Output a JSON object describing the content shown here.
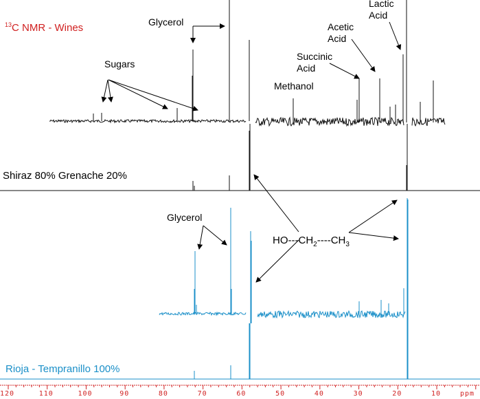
{
  "chart_data": {
    "type": "line",
    "title": "13C NMR - Wines",
    "xlabel": "ppm",
    "xlim": [
      120,
      0
    ],
    "x_reversed": true,
    "x_ticks": [
      120,
      110,
      100,
      90,
      80,
      70,
      60,
      50,
      40,
      30,
      20,
      10
    ],
    "grid": false,
    "series": [
      {
        "name": "Shiraz 80% Grenache 20%",
        "color": "#000000",
        "peaks": [
          {
            "ppm": 72.5,
            "label": "Glycerol",
            "rel_height": 0.72
          },
          {
            "ppm": 63.5,
            "label": "Glycerol",
            "rel_height": 1.0
          },
          {
            "ppm": 58.0,
            "label": "Ethanol CH2",
            "rel_height": 1.0
          },
          {
            "ppm": 47.0,
            "label": "Methanol",
            "rel_height": 0.3
          },
          {
            "ppm": 29.5,
            "label": "Succinic Acid",
            "rel_height": 0.55
          },
          {
            "ppm": 24.0,
            "label": "Acetic Acid",
            "rel_height": 0.6
          },
          {
            "ppm": 18.5,
            "label": "Lactic Acid",
            "rel_height": 0.85
          },
          {
            "ppm": 17.5,
            "label": "Ethanol CH3",
            "rel_height": 1.0
          },
          {
            "ppm": 10.0,
            "label": "",
            "rel_height": 0.55
          },
          {
            "ppm": 97.0,
            "label": "Sugars",
            "rel_height": 0.15
          },
          {
            "ppm": 93.0,
            "label": "Sugars",
            "rel_height": 0.15
          },
          {
            "ppm": 76.5,
            "label": "Sugars",
            "rel_height": 0.2
          },
          {
            "ppm": 72.0,
            "label": "Sugars",
            "rel_height": 0.2
          }
        ]
      },
      {
        "name": "Rioja - Tempranillo 100%",
        "color": "#1a8fc8",
        "peaks": [
          {
            "ppm": 72.5,
            "label": "Glycerol",
            "rel_height": 0.6
          },
          {
            "ppm": 63.5,
            "label": "Glycerol",
            "rel_height": 1.0
          },
          {
            "ppm": 58.0,
            "label": "Ethanol CH2",
            "rel_height": 1.0
          },
          {
            "ppm": 17.5,
            "label": "Ethanol CH3",
            "rel_height": 1.0
          },
          {
            "ppm": 18.0,
            "label": "",
            "rel_height": 0.5
          }
        ]
      }
    ],
    "annotations": [
      "Glycerol",
      "Sugars",
      "Methanol",
      "Succinic Acid",
      "Acetic Acid",
      "Lactic Acid",
      "HO---CH2----CH3",
      "Glycerol"
    ]
  },
  "labels": {
    "title_sup": "13",
    "title_main": "C NMR - Wines",
    "glycerol_top": "Glycerol",
    "sugars": "Sugars",
    "methanol": "Methanol",
    "succinic_1": "Succinic",
    "succinic_2": "Acid",
    "acetic_1": "Acetic",
    "acetic_2": "Acid",
    "lactic_1": "Lactic",
    "lactic_2": "Acid",
    "shiraz": "Shiraz 80% Grenache 20%",
    "glycerol_bottom": "Glycerol",
    "formula_ho": "HO---CH",
    "formula_sub2": "2",
    "formula_mid": "----CH",
    "formula_sub3": "3",
    "rioja": "Rioja - Tempranillo 100%"
  },
  "axis": {
    "ticks": [
      "120",
      "110",
      "100",
      "90",
      "80",
      "70",
      "60",
      "50",
      "40",
      "30",
      "20",
      "10"
    ],
    "unit": "ppm"
  },
  "colors": {
    "title": "#d02020",
    "axis": "#d02020",
    "shiraz": "#000000",
    "rioja": "#1a8fc8"
  }
}
